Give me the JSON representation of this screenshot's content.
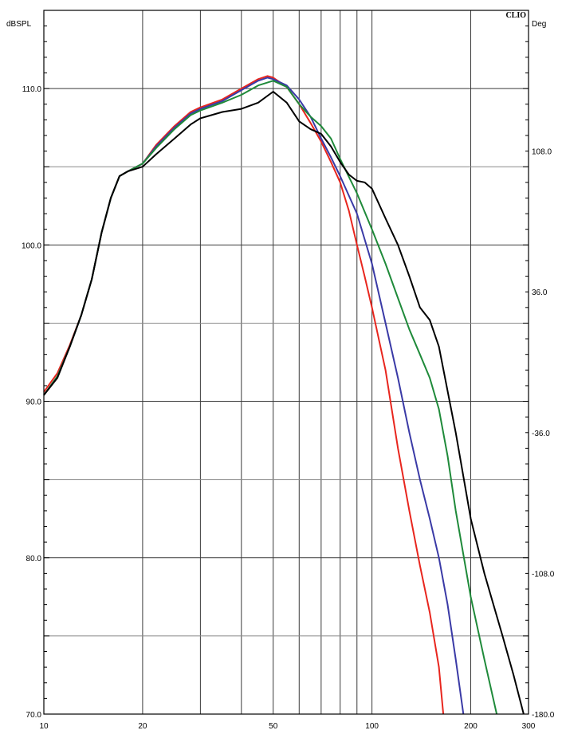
{
  "chart_data": {
    "type": "line",
    "brand": "CLIO",
    "ylabel_left": "dBSPL",
    "ylabel_right": "Deg",
    "x_scale": "log",
    "xlim": [
      10,
      300
    ],
    "ylim": [
      70,
      115
    ],
    "ylim_right": [
      -180,
      180
    ],
    "grid": true,
    "x_ticks": [
      {
        "value": 10,
        "label": "10"
      },
      {
        "value": 20,
        "label": "20"
      },
      {
        "value": 50,
        "label": "50"
      },
      {
        "value": 100,
        "label": "100"
      },
      {
        "value": 200,
        "label": "200"
      },
      {
        "value": 300,
        "label": "300"
      }
    ],
    "x_gridlines": [
      10,
      20,
      30,
      40,
      50,
      60,
      70,
      80,
      90,
      100,
      200
    ],
    "y_ticks_left": [
      {
        "value": 70,
        "label": "70.0"
      },
      {
        "value": 80,
        "label": "80.0"
      },
      {
        "value": 90,
        "label": "90.0"
      },
      {
        "value": 100,
        "label": "100.0"
      },
      {
        "value": 110,
        "label": "110.0"
      }
    ],
    "y_ticks_right": [
      {
        "value": -180,
        "label": "-180.0"
      },
      {
        "value": -108,
        "label": "-108.0"
      },
      {
        "value": -36,
        "label": "-36.0"
      },
      {
        "value": 36,
        "label": "36.0"
      },
      {
        "value": 108,
        "label": "108.0"
      }
    ],
    "y_gridlines_major": [
      80,
      90,
      100,
      110
    ],
    "y_gridlines_minor": [
      75,
      85,
      95,
      105
    ],
    "series": [
      {
        "color": "#e8261e",
        "x": [
          10,
          11,
          12,
          13,
          14,
          15,
          16,
          17,
          18,
          20,
          22,
          25,
          28,
          30,
          35,
          40,
          45,
          48,
          50,
          55,
          60,
          65,
          70,
          75,
          80,
          85,
          90,
          95,
          100,
          110,
          120,
          130,
          140,
          150,
          160,
          165
        ],
        "y": [
          90.6,
          91.8,
          93.6,
          95.5,
          97.8,
          100.8,
          103.0,
          104.4,
          104.7,
          105.2,
          106.4,
          107.6,
          108.5,
          108.8,
          109.3,
          110.0,
          110.6,
          110.8,
          110.7,
          110.1,
          109.0,
          107.8,
          106.6,
          105.3,
          104.0,
          102.2,
          100.0,
          98.0,
          96.0,
          92.0,
          87.0,
          83.0,
          79.5,
          76.5,
          73.0,
          70.0
        ]
      },
      {
        "color": "#3a3aa6",
        "x": [
          10,
          11,
          12,
          13,
          14,
          15,
          16,
          17,
          18,
          20,
          22,
          25,
          28,
          30,
          35,
          40,
          45,
          48,
          50,
          55,
          60,
          65,
          70,
          75,
          80,
          90,
          100,
          110,
          120,
          130,
          140,
          150,
          160,
          170,
          180,
          190
        ],
        "y": [
          90.4,
          91.6,
          93.5,
          95.5,
          97.8,
          100.8,
          103.0,
          104.4,
          104.7,
          105.2,
          106.3,
          107.5,
          108.4,
          108.7,
          109.2,
          109.9,
          110.5,
          110.7,
          110.6,
          110.2,
          109.3,
          108.2,
          106.8,
          105.6,
          104.4,
          102.0,
          98.8,
          95.0,
          91.5,
          88.0,
          85.0,
          82.5,
          80.0,
          77.0,
          73.5,
          70.0
        ]
      },
      {
        "color": "#1f8a3a",
        "x": [
          10,
          11,
          12,
          13,
          14,
          15,
          16,
          17,
          18,
          20,
          22,
          25,
          28,
          30,
          35,
          40,
          45,
          50,
          55,
          60,
          65,
          70,
          75,
          80,
          90,
          100,
          110,
          120,
          130,
          140,
          150,
          160,
          170,
          180,
          200,
          220,
          240
        ],
        "y": [
          90.4,
          91.6,
          93.5,
          95.5,
          97.8,
          100.8,
          103.0,
          104.4,
          104.7,
          105.2,
          106.2,
          107.4,
          108.3,
          108.6,
          109.1,
          109.6,
          110.2,
          110.5,
          110.1,
          109.0,
          108.2,
          107.6,
          106.8,
          105.5,
          103.3,
          101.0,
          98.8,
          96.6,
          94.6,
          93.0,
          91.5,
          89.5,
          86.5,
          83.0,
          77.5,
          73.5,
          70.0
        ]
      },
      {
        "color": "#000000",
        "x": [
          10,
          11,
          12,
          13,
          14,
          15,
          16,
          17,
          18,
          20,
          22,
          25,
          28,
          30,
          35,
          40,
          45,
          50,
          55,
          60,
          65,
          70,
          75,
          80,
          85,
          90,
          95,
          100,
          110,
          120,
          130,
          140,
          150,
          160,
          180,
          200,
          220,
          250,
          270,
          290
        ],
        "y": [
          90.4,
          91.5,
          93.5,
          95.5,
          97.8,
          100.8,
          103.0,
          104.4,
          104.7,
          105.0,
          105.8,
          106.8,
          107.7,
          108.1,
          108.5,
          108.7,
          109.1,
          109.8,
          109.1,
          107.9,
          107.4,
          107.1,
          106.3,
          105.3,
          104.5,
          104.1,
          104.0,
          103.6,
          101.7,
          100.0,
          98.0,
          96.0,
          95.2,
          93.5,
          88.0,
          82.5,
          79.0,
          75.0,
          72.5,
          70.0
        ]
      }
    ]
  }
}
